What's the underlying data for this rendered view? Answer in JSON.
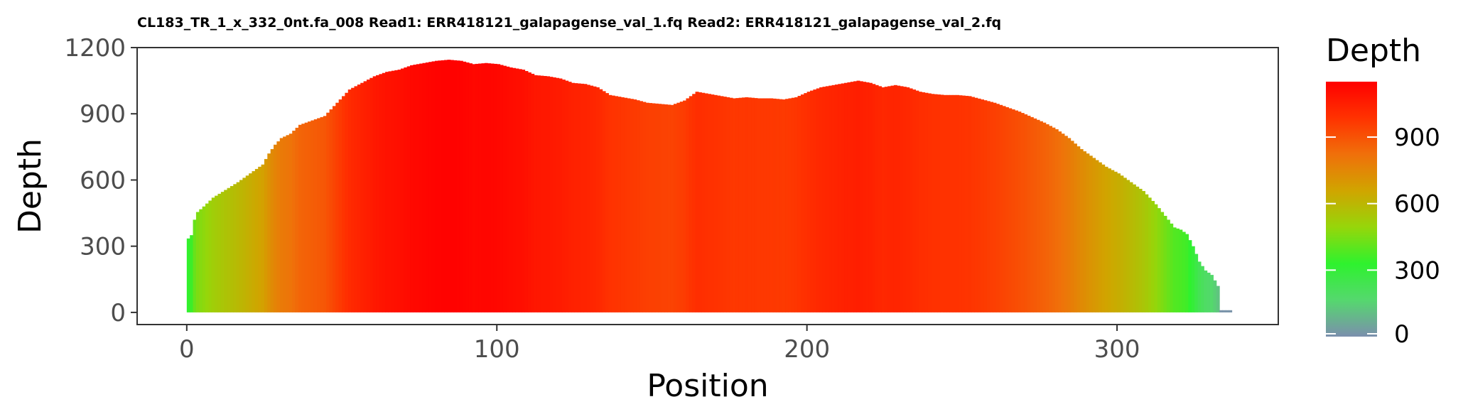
{
  "chart_data": {
    "type": "bar",
    "title": "CL183_TR_1_x_332_0nt.fa_008 Read1: ERR418121_galapagense_val_1.fq Read2: ERR418121_galapagense_val_2.fq",
    "xlabel": "Position",
    "ylabel": "Depth",
    "xlim": [
      -16,
      352
    ],
    "ylim": [
      -55,
      1200
    ],
    "x_ticks": [
      0,
      100,
      200,
      300
    ],
    "y_ticks": [
      0,
      300,
      600,
      900,
      1200
    ],
    "grid": false,
    "legend": {
      "title": "Depth",
      "placement": "right",
      "range": [
        0,
        1150
      ],
      "ticks": [
        0,
        300,
        600,
        900
      ],
      "colors": [
        "#7b8fad",
        "#55d86e",
        "#2ef22e",
        "#96d60a",
        "#d0a500",
        "#f0700a",
        "#ff3200",
        "#ff0000"
      ]
    },
    "profile": {
      "positions": [
        0,
        1,
        2,
        3,
        5,
        8,
        12,
        16,
        20,
        24,
        26,
        28,
        30,
        33,
        36,
        40,
        44,
        48,
        52,
        56,
        60,
        64,
        68,
        72,
        76,
        80,
        84,
        88,
        92,
        96,
        100,
        104,
        108,
        112,
        116,
        120,
        124,
        128,
        132,
        136,
        140,
        144,
        148,
        152,
        156,
        160,
        164,
        168,
        172,
        176,
        180,
        184,
        188,
        192,
        196,
        200,
        204,
        208,
        212,
        216,
        220,
        224,
        228,
        232,
        236,
        240,
        244,
        248,
        252,
        256,
        260,
        264,
        268,
        272,
        276,
        280,
        284,
        288,
        292,
        296,
        300,
        304,
        308,
        312,
        316,
        318,
        320,
        322,
        324,
        326,
        328,
        330,
        332,
        333,
        334,
        335,
        336
      ],
      "depths": [
        335,
        350,
        420,
        455,
        480,
        520,
        555,
        590,
        630,
        670,
        720,
        760,
        790,
        810,
        850,
        870,
        890,
        950,
        1010,
        1040,
        1070,
        1090,
        1100,
        1120,
        1130,
        1140,
        1145,
        1140,
        1125,
        1130,
        1125,
        1110,
        1100,
        1075,
        1070,
        1060,
        1040,
        1035,
        1020,
        985,
        975,
        965,
        950,
        945,
        940,
        960,
        1000,
        990,
        980,
        970,
        975,
        970,
        970,
        965,
        975,
        1000,
        1020,
        1030,
        1040,
        1050,
        1040,
        1020,
        1030,
        1020,
        1000,
        990,
        985,
        985,
        980,
        965,
        950,
        930,
        910,
        885,
        860,
        830,
        790,
        740,
        700,
        660,
        630,
        590,
        550,
        490,
        420,
        385,
        375,
        355,
        300,
        230,
        190,
        170,
        120,
        10,
        10,
        10,
        10
      ]
    }
  }
}
